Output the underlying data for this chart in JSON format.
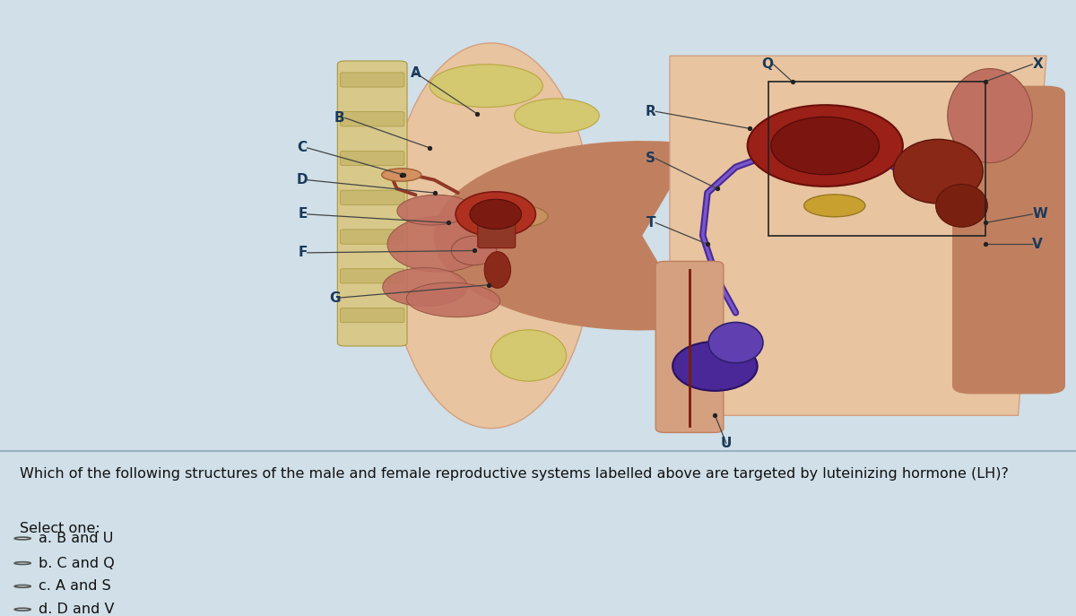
{
  "bg_color": "#d0dfe8",
  "panel_bg": "#ffffff",
  "divider_color": "#9ab0bc",
  "question_text": "Which of the following structures of the male and female reproductive systems labelled above are targeted by luteinizing hormone (LH)?",
  "select_text": "Select one:",
  "options": [
    "a. B and U",
    "b. C and Q",
    "c. A and S",
    "d. D and V"
  ],
  "label_color": "#1a3a5a",
  "line_color": "#444444",
  "question_color": "#111111",
  "font_size_q": 11.5,
  "font_size_opt": 11.5,
  "font_size_lbl": 11,
  "skin_light": "#e8c4a0",
  "skin_mid": "#d4a080",
  "skin_dark": "#c08060",
  "organ_red": "#b03020",
  "organ_dark": "#7a1a10",
  "organ_mid": "#903828",
  "bone_color": "#d8c88a",
  "vas_color": "#4a2898",
  "testis_color": "#4a2898",
  "epi_color": "#6040b0",
  "prostate_color": "#c8a030",
  "intestine_color": "#c07060",
  "fat_color": "#d4c870"
}
